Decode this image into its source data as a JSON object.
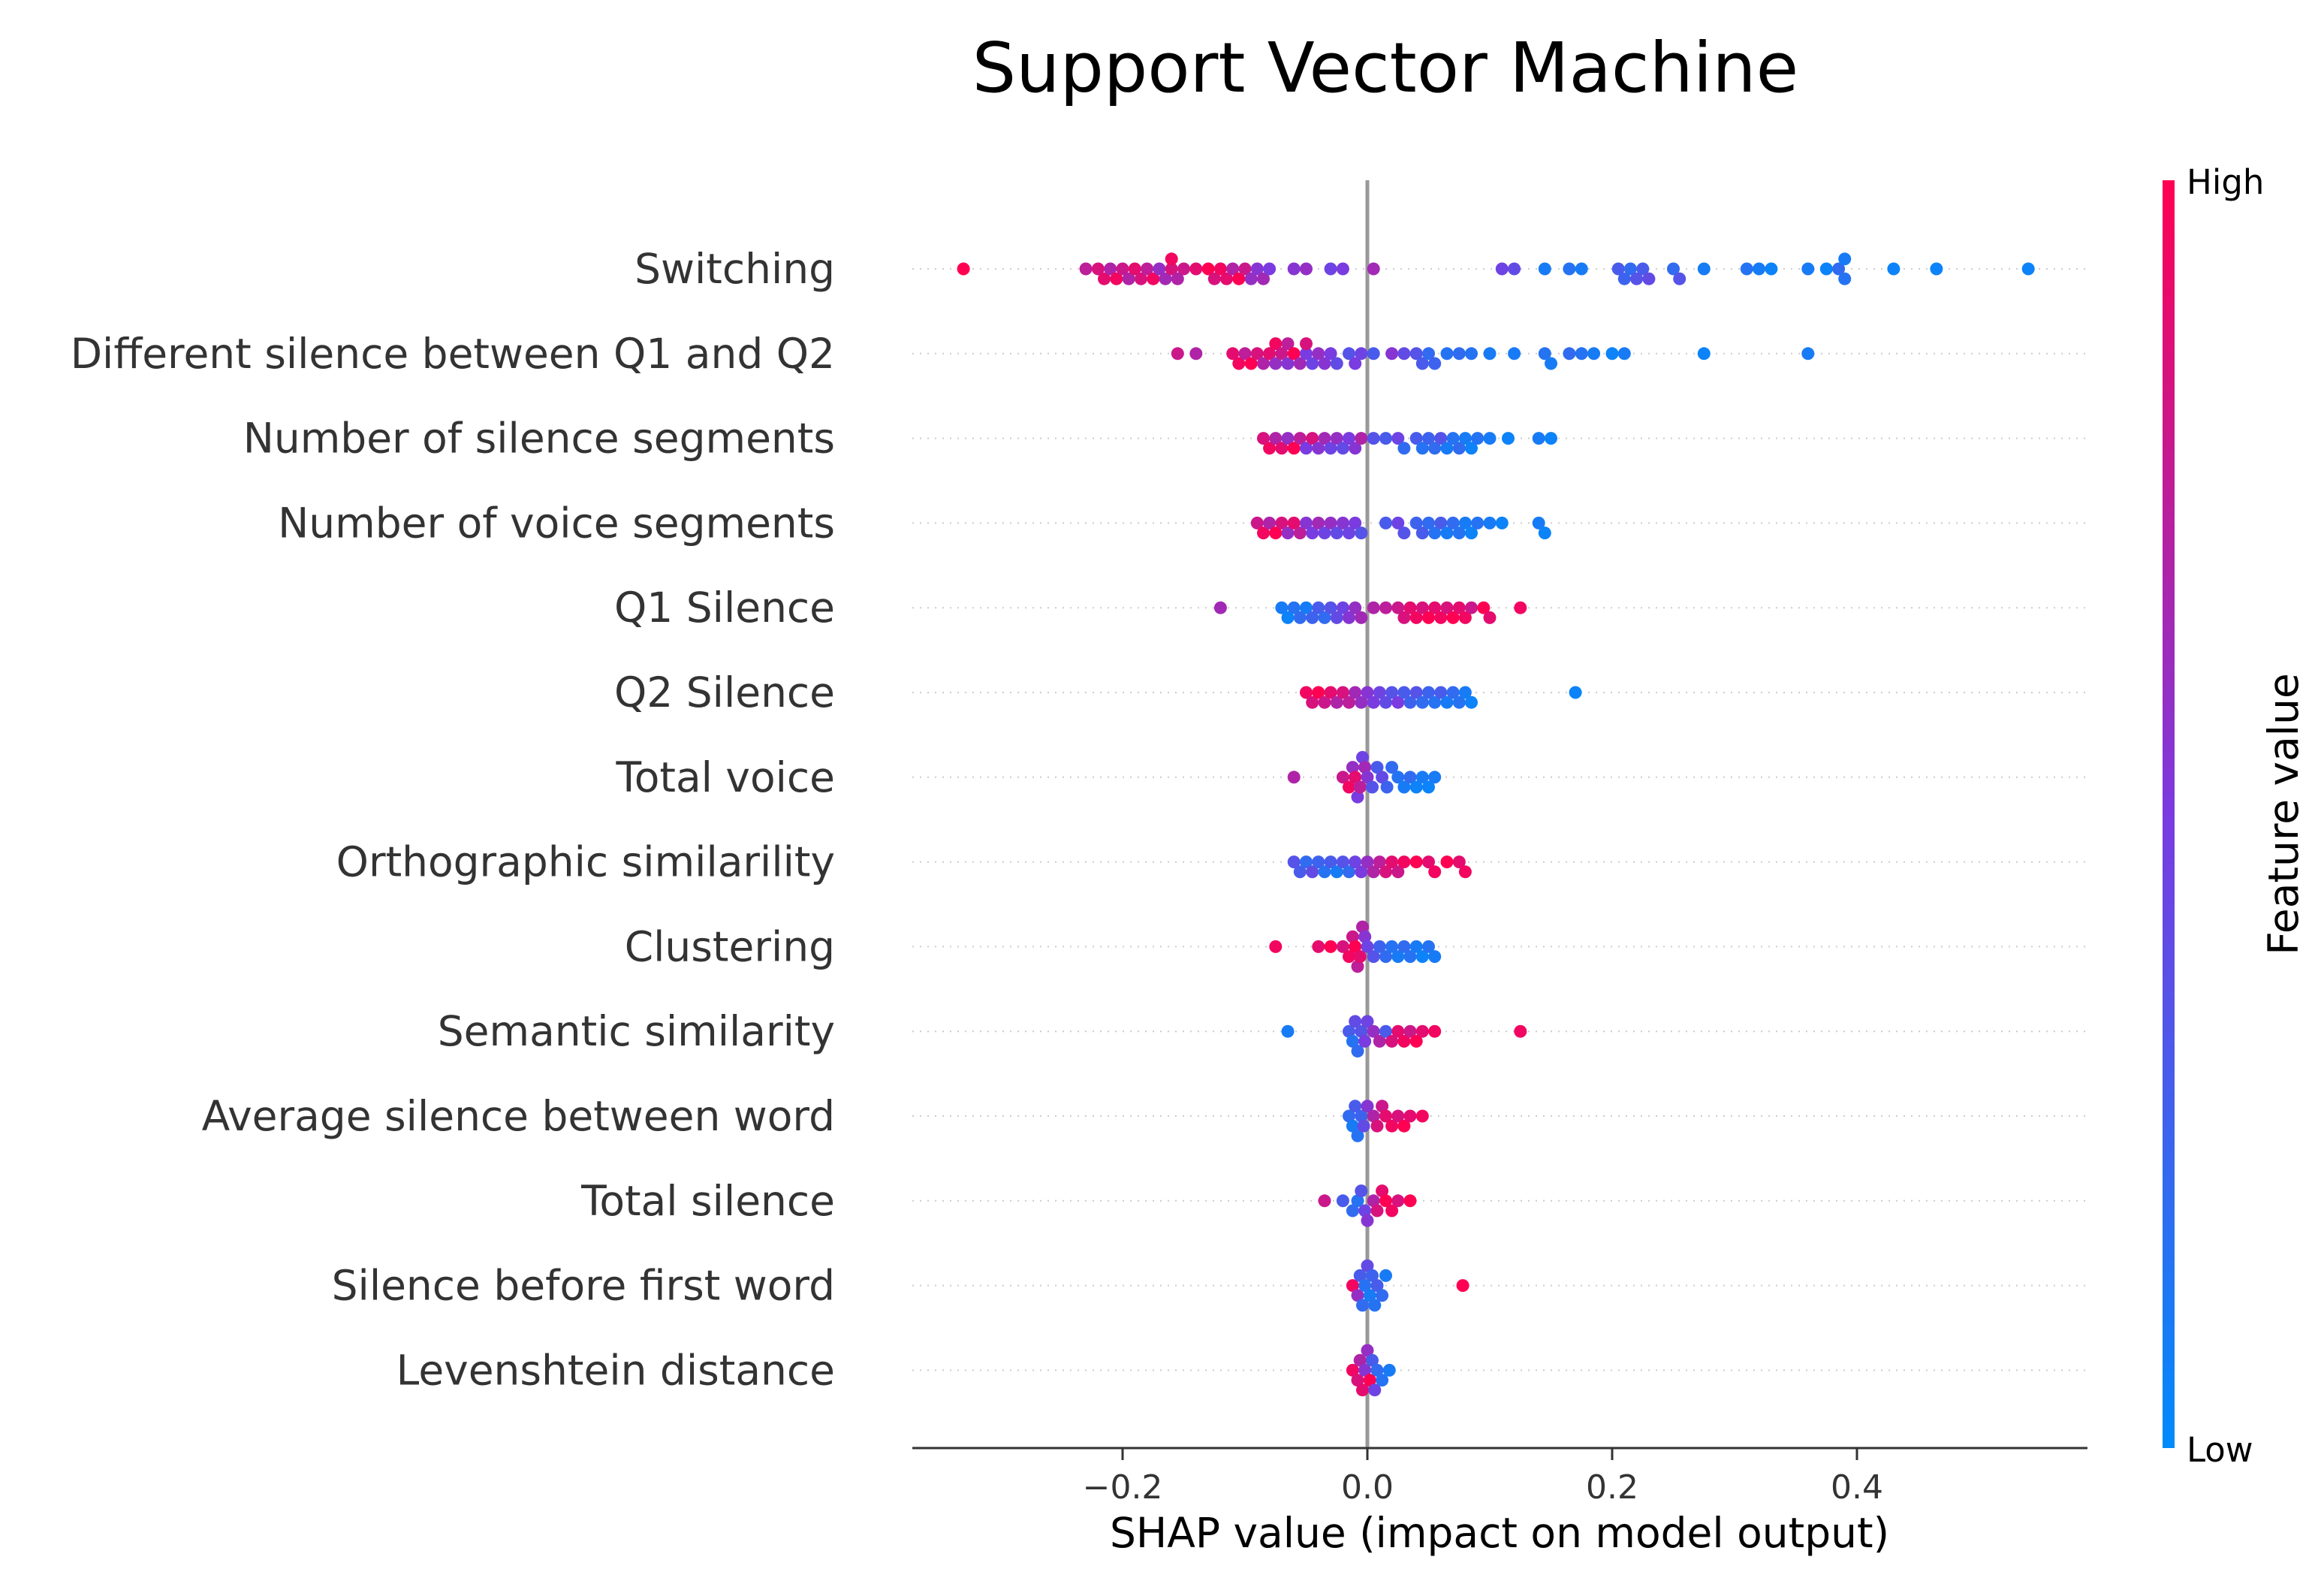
{
  "chart_data": {
    "type": "scatter",
    "subtype": "shap-beeswarm-summary",
    "title": "Support Vector Machine",
    "xlabel": "SHAP value (impact on model output)",
    "xlim": [
      -0.37,
      0.59
    ],
    "xticks": [
      -0.2,
      0.0,
      0.2,
      0.4
    ],
    "xtick_labels": [
      "−0.2",
      "0.0",
      "0.2",
      "0.4"
    ],
    "colorbar": {
      "label": "Feature value",
      "high_label": "High",
      "low_label": "Low",
      "low_color": "#008bfb",
      "high_color": "#ff0052"
    },
    "features": [
      {
        "name": "Switching",
        "values": [
          -0.33,
          -0.23,
          -0.22,
          -0.215,
          -0.21,
          -0.205,
          -0.2,
          -0.195,
          -0.19,
          -0.185,
          -0.18,
          -0.175,
          -0.17,
          -0.165,
          -0.16,
          -0.16,
          -0.155,
          -0.15,
          -0.14,
          -0.13,
          -0.125,
          -0.12,
          -0.115,
          -0.11,
          -0.105,
          -0.1,
          -0.095,
          -0.09,
          -0.085,
          -0.08,
          -0.06,
          -0.05,
          -0.03,
          -0.02,
          0.005,
          0.11,
          0.12,
          0.145,
          0.165,
          0.175,
          0.205,
          0.21,
          0.215,
          0.22,
          0.225,
          0.23,
          0.25,
          0.255,
          0.275,
          0.31,
          0.32,
          0.33,
          0.36,
          0.375,
          0.385,
          0.39,
          0.39,
          0.43,
          0.465,
          0.54
        ],
        "colors": [
          1.0,
          0.75,
          0.85,
          0.9,
          0.7,
          0.95,
          0.8,
          0.7,
          0.9,
          0.85,
          0.75,
          0.95,
          0.6,
          0.65,
          0.85,
          0.95,
          0.7,
          0.8,
          0.9,
          1.0,
          0.85,
          0.95,
          0.9,
          0.7,
          1.0,
          0.8,
          0.6,
          0.55,
          0.65,
          0.5,
          0.55,
          0.6,
          0.45,
          0.5,
          0.65,
          0.45,
          0.4,
          0.1,
          0.15,
          0.1,
          0.3,
          0.25,
          0.2,
          0.35,
          0.3,
          0.4,
          0.2,
          0.35,
          0.1,
          0.15,
          0.1,
          0.05,
          0.1,
          0.05,
          0.2,
          0.15,
          0.1,
          0.05,
          0.05,
          0.05
        ]
      },
      {
        "name": "Different silence between Q1 and Q2",
        "values": [
          -0.155,
          -0.14,
          -0.11,
          -0.105,
          -0.1,
          -0.095,
          -0.09,
          -0.085,
          -0.08,
          -0.075,
          -0.075,
          -0.07,
          -0.065,
          -0.065,
          -0.06,
          -0.055,
          -0.05,
          -0.05,
          -0.045,
          -0.04,
          -0.035,
          -0.03,
          -0.025,
          -0.015,
          -0.01,
          -0.005,
          0.005,
          0.02,
          0.03,
          0.04,
          0.045,
          0.05,
          0.055,
          0.065,
          0.075,
          0.085,
          0.1,
          0.12,
          0.145,
          0.15,
          0.165,
          0.175,
          0.185,
          0.2,
          0.21,
          0.275,
          0.36
        ],
        "colors": [
          0.8,
          0.7,
          0.9,
          0.95,
          0.75,
          1.0,
          0.85,
          0.7,
          0.9,
          0.6,
          0.95,
          0.8,
          0.55,
          0.75,
          1.0,
          0.65,
          0.5,
          0.85,
          0.45,
          0.6,
          0.55,
          0.5,
          0.4,
          0.35,
          0.5,
          0.45,
          0.3,
          0.55,
          0.4,
          0.35,
          0.3,
          0.2,
          0.25,
          0.15,
          0.2,
          0.15,
          0.1,
          0.1,
          0.15,
          0.1,
          0.2,
          0.15,
          0.1,
          0.05,
          0.1,
          0.05,
          0.1
        ]
      },
      {
        "name": "Number of silence segments",
        "values": [
          -0.085,
          -0.08,
          -0.075,
          -0.07,
          -0.065,
          -0.06,
          -0.055,
          -0.05,
          -0.045,
          -0.04,
          -0.035,
          -0.03,
          -0.025,
          -0.02,
          -0.015,
          -0.01,
          -0.005,
          0.005,
          0.015,
          0.025,
          0.03,
          0.04,
          0.045,
          0.05,
          0.055,
          0.06,
          0.065,
          0.07,
          0.075,
          0.08,
          0.085,
          0.09,
          0.1,
          0.115,
          0.14,
          0.15
        ],
        "colors": [
          0.85,
          0.95,
          0.7,
          0.9,
          0.6,
          1.0,
          0.75,
          0.5,
          0.85,
          0.55,
          0.65,
          0.45,
          0.6,
          0.4,
          0.5,
          0.55,
          0.7,
          0.35,
          0.3,
          0.45,
          0.2,
          0.3,
          0.15,
          0.25,
          0.2,
          0.35,
          0.1,
          0.15,
          0.2,
          0.1,
          0.05,
          0.15,
          0.1,
          0.05,
          0.1,
          0.05
        ]
      },
      {
        "name": "Number of voice segments",
        "values": [
          -0.09,
          -0.085,
          -0.08,
          -0.075,
          -0.07,
          -0.065,
          -0.06,
          -0.055,
          -0.05,
          -0.045,
          -0.04,
          -0.035,
          -0.03,
          -0.025,
          -0.02,
          -0.015,
          -0.01,
          -0.005,
          0.015,
          0.025,
          0.03,
          0.04,
          0.045,
          0.05,
          0.055,
          0.06,
          0.065,
          0.07,
          0.075,
          0.08,
          0.085,
          0.09,
          0.1,
          0.11,
          0.14,
          0.145
        ],
        "colors": [
          0.8,
          0.95,
          0.7,
          1.0,
          0.85,
          0.6,
          0.9,
          0.75,
          0.55,
          0.5,
          0.65,
          0.45,
          0.6,
          0.4,
          0.55,
          0.45,
          0.5,
          0.35,
          0.3,
          0.45,
          0.35,
          0.25,
          0.3,
          0.2,
          0.15,
          0.3,
          0.1,
          0.2,
          0.15,
          0.1,
          0.05,
          0.15,
          0.1,
          0.05,
          0.1,
          0.05
        ]
      },
      {
        "name": "Q1 Silence",
        "values": [
          -0.12,
          -0.07,
          -0.065,
          -0.06,
          -0.055,
          -0.05,
          -0.045,
          -0.04,
          -0.035,
          -0.03,
          -0.025,
          -0.02,
          -0.015,
          -0.01,
          -0.005,
          0.005,
          0.015,
          0.025,
          0.03,
          0.035,
          0.04,
          0.045,
          0.05,
          0.055,
          0.06,
          0.065,
          0.07,
          0.075,
          0.08,
          0.085,
          0.095,
          0.1,
          0.125
        ],
        "colors": [
          0.65,
          0.1,
          0.05,
          0.15,
          0.2,
          0.1,
          0.25,
          0.3,
          0.2,
          0.35,
          0.4,
          0.45,
          0.55,
          0.6,
          0.65,
          0.7,
          0.75,
          0.8,
          0.85,
          0.9,
          0.95,
          0.85,
          1.0,
          0.9,
          0.95,
          0.85,
          1.0,
          0.9,
          0.95,
          0.8,
          1.0,
          0.9,
          0.95
        ]
      },
      {
        "name": "Q2 Silence",
        "values": [
          -0.05,
          -0.045,
          -0.04,
          -0.035,
          -0.03,
          -0.025,
          -0.02,
          -0.015,
          -0.01,
          -0.005,
          0.0,
          0.005,
          0.01,
          0.015,
          0.02,
          0.025,
          0.03,
          0.035,
          0.04,
          0.045,
          0.05,
          0.055,
          0.06,
          0.065,
          0.07,
          0.075,
          0.08,
          0.085,
          0.17
        ],
        "colors": [
          0.95,
          0.85,
          1.0,
          0.8,
          0.9,
          0.7,
          0.85,
          0.75,
          0.65,
          0.6,
          0.55,
          0.5,
          0.45,
          0.4,
          0.35,
          0.5,
          0.3,
          0.25,
          0.35,
          0.2,
          0.25,
          0.15,
          0.3,
          0.1,
          0.2,
          0.15,
          0.1,
          0.05,
          0.05
        ]
      },
      {
        "name": "Total voice",
        "values": [
          -0.06,
          -0.02,
          -0.015,
          -0.012,
          -0.01,
          -0.008,
          -0.006,
          -0.004,
          -0.002,
          0.0,
          0.004,
          0.008,
          0.012,
          0.016,
          0.02,
          0.025,
          0.03,
          0.035,
          0.04,
          0.045,
          0.05,
          0.055
        ],
        "colors": [
          0.7,
          0.8,
          0.95,
          0.6,
          0.9,
          0.5,
          0.75,
          0.45,
          0.65,
          0.55,
          0.35,
          0.3,
          0.4,
          0.25,
          0.2,
          0.15,
          0.1,
          0.2,
          0.05,
          0.1,
          0.05,
          0.1
        ]
      },
      {
        "name": "Orthographic similarility",
        "values": [
          -0.06,
          -0.055,
          -0.05,
          -0.045,
          -0.04,
          -0.035,
          -0.03,
          -0.025,
          -0.02,
          -0.015,
          -0.01,
          -0.005,
          0.0,
          0.005,
          0.01,
          0.015,
          0.02,
          0.025,
          0.03,
          0.04,
          0.05,
          0.055,
          0.065,
          0.075,
          0.08
        ],
        "colors": [
          0.35,
          0.3,
          0.2,
          0.4,
          0.25,
          0.15,
          0.3,
          0.1,
          0.35,
          0.2,
          0.45,
          0.5,
          0.6,
          0.7,
          0.75,
          0.85,
          0.9,
          0.8,
          0.95,
          1.0,
          0.9,
          0.95,
          1.0,
          0.9,
          0.95
        ]
      },
      {
        "name": "Clustering",
        "values": [
          -0.075,
          -0.04,
          -0.03,
          -0.02,
          -0.015,
          -0.012,
          -0.01,
          -0.008,
          -0.006,
          -0.004,
          -0.002,
          0.0,
          0.005,
          0.01,
          0.015,
          0.02,
          0.025,
          0.03,
          0.035,
          0.04,
          0.045,
          0.05,
          0.055
        ],
        "colors": [
          0.95,
          0.9,
          1.0,
          0.85,
          0.95,
          0.8,
          1.0,
          0.75,
          0.9,
          0.7,
          0.55,
          0.45,
          0.35,
          0.25,
          0.2,
          0.15,
          0.1,
          0.2,
          0.15,
          0.1,
          0.05,
          0.15,
          0.1
        ]
      },
      {
        "name": "Semantic similarity",
        "values": [
          -0.065,
          -0.015,
          -0.012,
          -0.01,
          -0.008,
          -0.005,
          -0.002,
          0.0,
          0.005,
          0.01,
          0.015,
          0.02,
          0.025,
          0.03,
          0.035,
          0.04,
          0.045,
          0.055,
          0.125
        ],
        "colors": [
          0.1,
          0.3,
          0.15,
          0.4,
          0.2,
          0.35,
          0.5,
          0.45,
          0.6,
          0.7,
          0.3,
          0.85,
          0.9,
          0.95,
          0.8,
          1.0,
          0.9,
          0.95,
          0.95
        ]
      },
      {
        "name": "Average silence between word",
        "values": [
          -0.015,
          -0.012,
          -0.01,
          -0.008,
          -0.005,
          -0.003,
          0.0,
          0.005,
          0.008,
          0.012,
          0.015,
          0.02,
          0.025,
          0.03,
          0.035,
          0.045
        ],
        "colors": [
          0.2,
          0.1,
          0.3,
          0.15,
          0.25,
          0.4,
          0.55,
          0.7,
          0.85,
          0.8,
          0.9,
          0.95,
          0.85,
          1.0,
          0.9,
          0.95
        ]
      },
      {
        "name": "Total silence",
        "values": [
          -0.035,
          -0.02,
          -0.012,
          -0.008,
          -0.005,
          -0.002,
          0.0,
          0.005,
          0.008,
          0.012,
          0.015,
          0.02,
          0.025,
          0.035
        ],
        "colors": [
          0.8,
          0.3,
          0.2,
          0.15,
          0.35,
          0.45,
          0.55,
          0.7,
          0.85,
          0.9,
          1.0,
          0.95,
          0.85,
          1.0
        ]
      },
      {
        "name": "Silence before first word",
        "values": [
          -0.012,
          -0.008,
          -0.006,
          -0.004,
          -0.002,
          0.0,
          0.002,
          0.004,
          0.006,
          0.008,
          0.012,
          0.015,
          0.078
        ],
        "colors": [
          0.95,
          0.6,
          0.3,
          0.2,
          0.15,
          0.4,
          0.1,
          0.25,
          0.15,
          0.3,
          0.2,
          0.1,
          1.0
        ]
      },
      {
        "name": "Levenshtein distance",
        "values": [
          -0.012,
          -0.008,
          -0.006,
          -0.004,
          -0.002,
          0.0,
          0.002,
          0.004,
          0.006,
          0.008,
          0.012,
          0.018
        ],
        "colors": [
          0.95,
          0.85,
          0.7,
          0.9,
          0.55,
          0.6,
          1.0,
          0.3,
          0.45,
          0.2,
          0.15,
          0.1
        ]
      }
    ]
  }
}
